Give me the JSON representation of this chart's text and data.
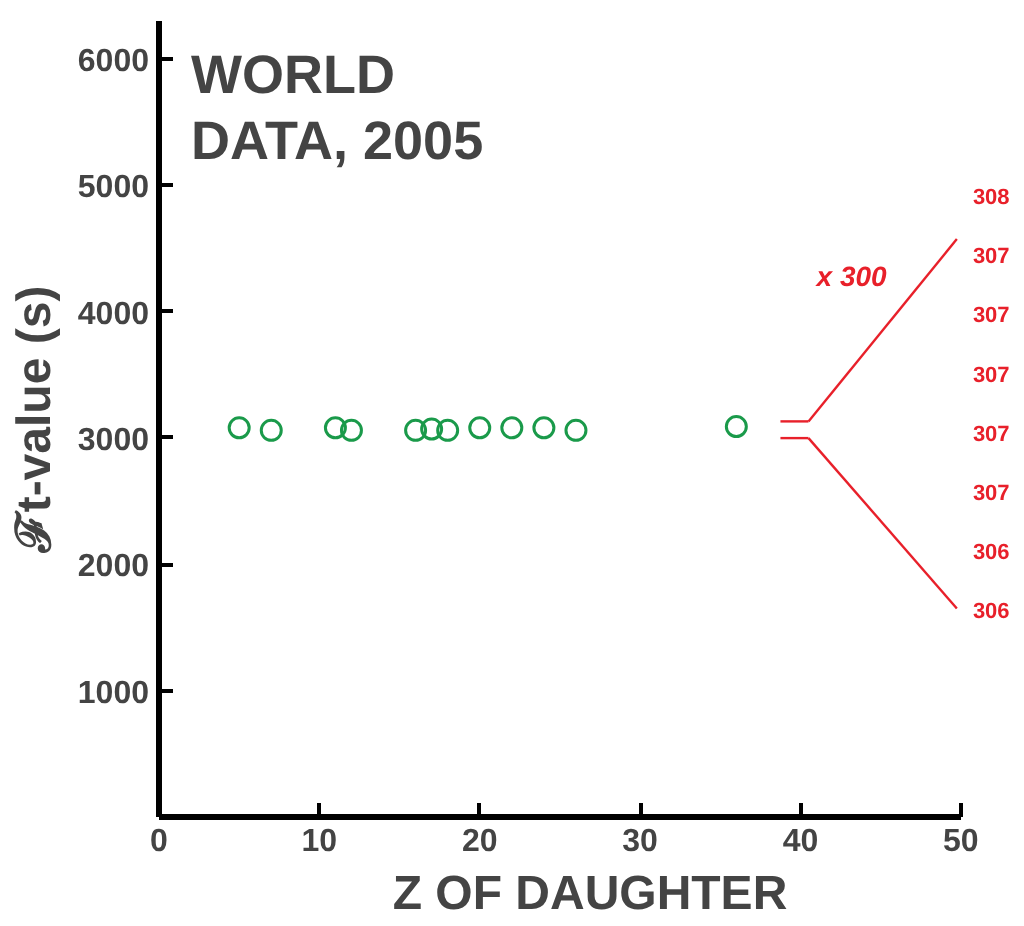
{
  "chart_data": {
    "type": "scatter",
    "title": "WORLD\nDATA, 2005",
    "xlabel": "Z OF DAUGHTER",
    "ylabel": "ℱt-value (s)",
    "x": [
      5,
      7,
      11,
      12,
      16,
      17,
      18,
      20,
      22,
      24,
      26,
      36
    ],
    "series": [
      {
        "color": "#1a9a4a",
        "values": [
          3080,
          3060,
          3080,
          3060,
          3060,
          3070,
          3060,
          3080,
          3080,
          3080,
          3060,
          3090
        ]
      }
    ],
    "marker": "circle",
    "xlim": [
      0,
      50
    ],
    "xticks": [
      0,
      10,
      20,
      30,
      40,
      50
    ],
    "ylim": [
      0,
      6300
    ],
    "yticks": [
      {
        "value": 0,
        "label": null
      },
      1000,
      2000,
      3000,
      4000,
      5000,
      6000
    ],
    "grid": false,
    "annotations": [
      "x 300",
      "308",
      "307",
      "307",
      "307",
      "307",
      "307",
      "306",
      "306"
    ]
  }
}
